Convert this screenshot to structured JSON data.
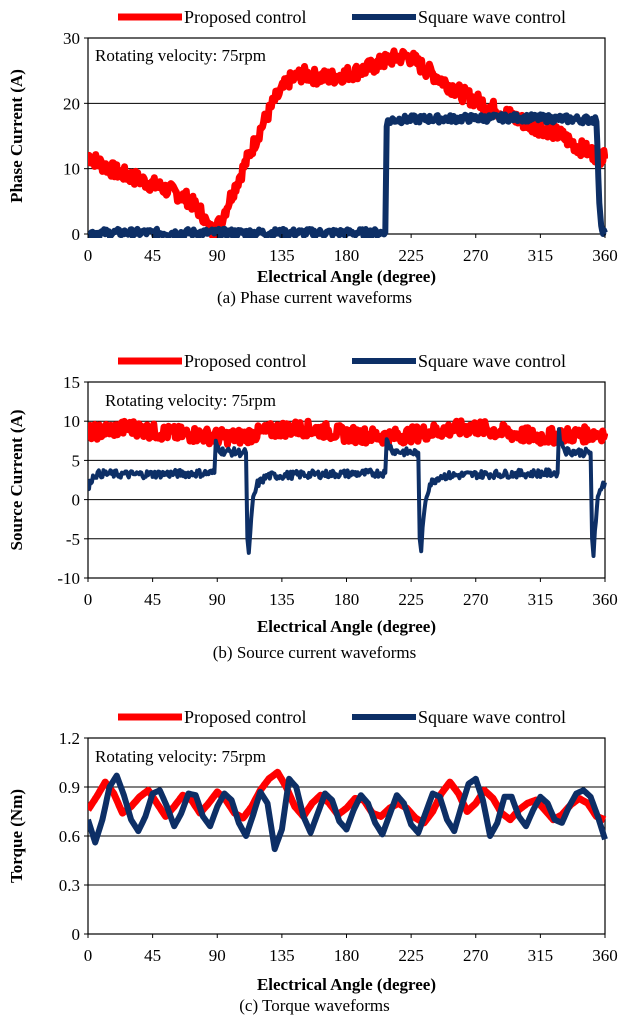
{
  "chart_data": [
    {
      "type": "line",
      "caption": "(a) Phase current waveforms",
      "xlabel": "Electrical Angle (degree)",
      "ylabel": "Phase Current (A)",
      "xlim": [
        0,
        360
      ],
      "ylim": [
        0,
        30
      ],
      "xticks": [
        0,
        45,
        90,
        135,
        180,
        225,
        270,
        315,
        360
      ],
      "yticks": [
        0,
        10,
        20,
        30
      ],
      "grid": "horizontal",
      "legend_placement": "top",
      "annotation": "Rotating velocity: 75rpm",
      "series": [
        {
          "name": "Proposed control",
          "color": "#ff0000",
          "line_width": 7,
          "noise": 1.2,
          "x": [
            0,
            10,
            20,
            30,
            40,
            50,
            60,
            70,
            80,
            84,
            88,
            92,
            100,
            110,
            120,
            130,
            140,
            150,
            160,
            170,
            180,
            190,
            200,
            210,
            220,
            225,
            230,
            240,
            250,
            260,
            270,
            280,
            290,
            300,
            310,
            320,
            330,
            340,
            350,
            360
          ],
          "y": [
            12.0,
            10.6,
            9.5,
            8.8,
            8.0,
            7.2,
            6.4,
            5.3,
            3.0,
            0.8,
            0.5,
            1.8,
            6.0,
            11.0,
            16.0,
            20.5,
            23.5,
            24.5,
            24.0,
            24.0,
            24.5,
            25.0,
            25.8,
            26.8,
            27.2,
            27.0,
            26.0,
            24.5,
            23.0,
            21.5,
            20.5,
            19.5,
            18.5,
            17.5,
            16.5,
            16.0,
            15.0,
            13.5,
            12.5,
            11.5
          ]
        },
        {
          "name": "Square wave control",
          "color": "#0d2f66",
          "line_width": 6,
          "noise": 0.6,
          "x": [
            0,
            207,
            208,
            212,
            230,
            300,
            350,
            354,
            356,
            358,
            360
          ],
          "y": [
            0.2,
            0.2,
            17.0,
            17.5,
            17.6,
            17.8,
            17.5,
            17.5,
            5.0,
            0.3,
            0.2
          ]
        }
      ]
    },
    {
      "type": "line",
      "caption": "(b) Source current waveforms",
      "xlabel": "Electrical Angle (degree)",
      "ylabel": "Source Current (A)",
      "xlim": [
        0,
        360
      ],
      "ylim": [
        -10,
        15
      ],
      "xticks": [
        0,
        45,
        90,
        135,
        180,
        225,
        270,
        315,
        360
      ],
      "yticks": [
        -10,
        -5,
        0,
        5,
        10,
        15
      ],
      "grid": "horizontal",
      "legend_placement": "top",
      "annotation": "Rotating velocity: 75rpm",
      "series": [
        {
          "name": "Proposed control",
          "color": "#ff0000",
          "line_width": 7,
          "noise": 1.0,
          "x": [
            0,
            15,
            30,
            45,
            60,
            75,
            90,
            105,
            120,
            135,
            150,
            165,
            180,
            195,
            210,
            225,
            240,
            255,
            270,
            285,
            300,
            315,
            330,
            345,
            360
          ],
          "y": [
            8.5,
            8.9,
            9.2,
            8.7,
            8.4,
            8.3,
            8.0,
            8.0,
            8.5,
            9.0,
            9.1,
            8.8,
            8.3,
            8.2,
            8.0,
            8.3,
            8.7,
            9.0,
            9.2,
            8.7,
            8.3,
            8.0,
            8.2,
            8.3,
            8.5
          ]
        },
        {
          "name": "Square wave control",
          "color": "#0d2f66",
          "line_width": 4,
          "noise": 0.5,
          "x": [
            0,
            2,
            5,
            10,
            30,
            60,
            88,
            89,
            90,
            93,
            105,
            110,
            111,
            112,
            113,
            115,
            118,
            125,
            150,
            180,
            207,
            208,
            210,
            213,
            225,
            230,
            231,
            232,
            233,
            235,
            238,
            245,
            270,
            300,
            327,
            328,
            330,
            333,
            345,
            350,
            351,
            352,
            353,
            355,
            358,
            360
          ],
          "y": [
            1.0,
            2.5,
            3.2,
            3.3,
            3.2,
            3.3,
            3.4,
            7.5,
            6.8,
            6.2,
            6.0,
            6.0,
            -5.0,
            -6.8,
            -4.0,
            0.0,
            2.0,
            3.0,
            3.2,
            3.3,
            3.4,
            7.5,
            6.8,
            6.2,
            6.0,
            6.0,
            -5.0,
            -6.6,
            -4.0,
            0.0,
            2.0,
            3.0,
            3.2,
            3.3,
            3.4,
            8.5,
            7.0,
            6.2,
            6.0,
            6.0,
            -5.0,
            -7.2,
            -4.0,
            0.0,
            2.0,
            2.2
          ]
        }
      ]
    },
    {
      "type": "line",
      "caption": "(c) Torque waveforms",
      "xlabel": "Electrical Angle (degree)",
      "ylabel": "Torque (Nm)",
      "xlim": [
        0,
        360
      ],
      "ylim": [
        0,
        1.2
      ],
      "xticks": [
        0,
        45,
        90,
        135,
        180,
        225,
        270,
        315,
        360
      ],
      "yticks": [
        0,
        0.3,
        0.6,
        0.9,
        1.2
      ],
      "grid": "horizontal",
      "legend_placement": "top",
      "annotation": "Rotating velocity: 75rpm",
      "series": [
        {
          "name": "Proposed control",
          "color": "#ff0000",
          "line_width": 7,
          "noise": 0.0,
          "x": [
            0,
            6,
            12,
            18,
            24,
            30,
            36,
            42,
            48,
            54,
            60,
            66,
            72,
            78,
            84,
            90,
            96,
            102,
            108,
            114,
            120,
            126,
            132,
            138,
            144,
            150,
            156,
            162,
            168,
            174,
            180,
            186,
            192,
            198,
            204,
            210,
            216,
            222,
            228,
            234,
            240,
            246,
            252,
            258,
            264,
            270,
            276,
            282,
            288,
            294,
            300,
            306,
            312,
            318,
            324,
            330,
            336,
            342,
            348,
            354,
            360
          ],
          "y": [
            0.76,
            0.84,
            0.93,
            0.86,
            0.74,
            0.78,
            0.84,
            0.88,
            0.8,
            0.72,
            0.78,
            0.85,
            0.82,
            0.74,
            0.8,
            0.87,
            0.82,
            0.74,
            0.71,
            0.78,
            0.88,
            0.95,
            0.99,
            0.9,
            0.78,
            0.72,
            0.8,
            0.85,
            0.8,
            0.73,
            0.77,
            0.83,
            0.82,
            0.74,
            0.72,
            0.77,
            0.8,
            0.77,
            0.71,
            0.68,
            0.75,
            0.86,
            0.93,
            0.86,
            0.75,
            0.8,
            0.88,
            0.83,
            0.74,
            0.7,
            0.76,
            0.8,
            0.82,
            0.76,
            0.7,
            0.73,
            0.79,
            0.83,
            0.8,
            0.72,
            0.7
          ]
        },
        {
          "name": "Square wave control",
          "color": "#0d2f66",
          "line_width": 6,
          "noise": 0.0,
          "x": [
            0,
            5,
            10,
            15,
            20,
            25,
            30,
            35,
            40,
            45,
            50,
            55,
            60,
            65,
            70,
            75,
            80,
            85,
            90,
            95,
            100,
            105,
            110,
            115,
            120,
            125,
            130,
            135,
            140,
            145,
            150,
            155,
            160,
            165,
            170,
            175,
            180,
            185,
            190,
            195,
            200,
            205,
            210,
            215,
            220,
            225,
            230,
            235,
            240,
            245,
            250,
            255,
            260,
            265,
            270,
            275,
            280,
            285,
            290,
            295,
            300,
            305,
            310,
            315,
            320,
            325,
            330,
            335,
            340,
            345,
            350,
            355,
            360
          ],
          "y": [
            0.7,
            0.56,
            0.7,
            0.9,
            0.97,
            0.85,
            0.7,
            0.63,
            0.72,
            0.86,
            0.88,
            0.78,
            0.66,
            0.74,
            0.86,
            0.85,
            0.72,
            0.66,
            0.78,
            0.86,
            0.82,
            0.68,
            0.6,
            0.73,
            0.87,
            0.8,
            0.52,
            0.64,
            0.95,
            0.9,
            0.72,
            0.62,
            0.74,
            0.86,
            0.82,
            0.69,
            0.64,
            0.76,
            0.85,
            0.8,
            0.68,
            0.61,
            0.73,
            0.85,
            0.8,
            0.67,
            0.62,
            0.74,
            0.86,
            0.84,
            0.7,
            0.63,
            0.78,
            0.92,
            0.95,
            0.82,
            0.6,
            0.68,
            0.84,
            0.84,
            0.72,
            0.66,
            0.76,
            0.84,
            0.8,
            0.7,
            0.68,
            0.78,
            0.86,
            0.88,
            0.84,
            0.72,
            0.58
          ]
        }
      ]
    }
  ]
}
